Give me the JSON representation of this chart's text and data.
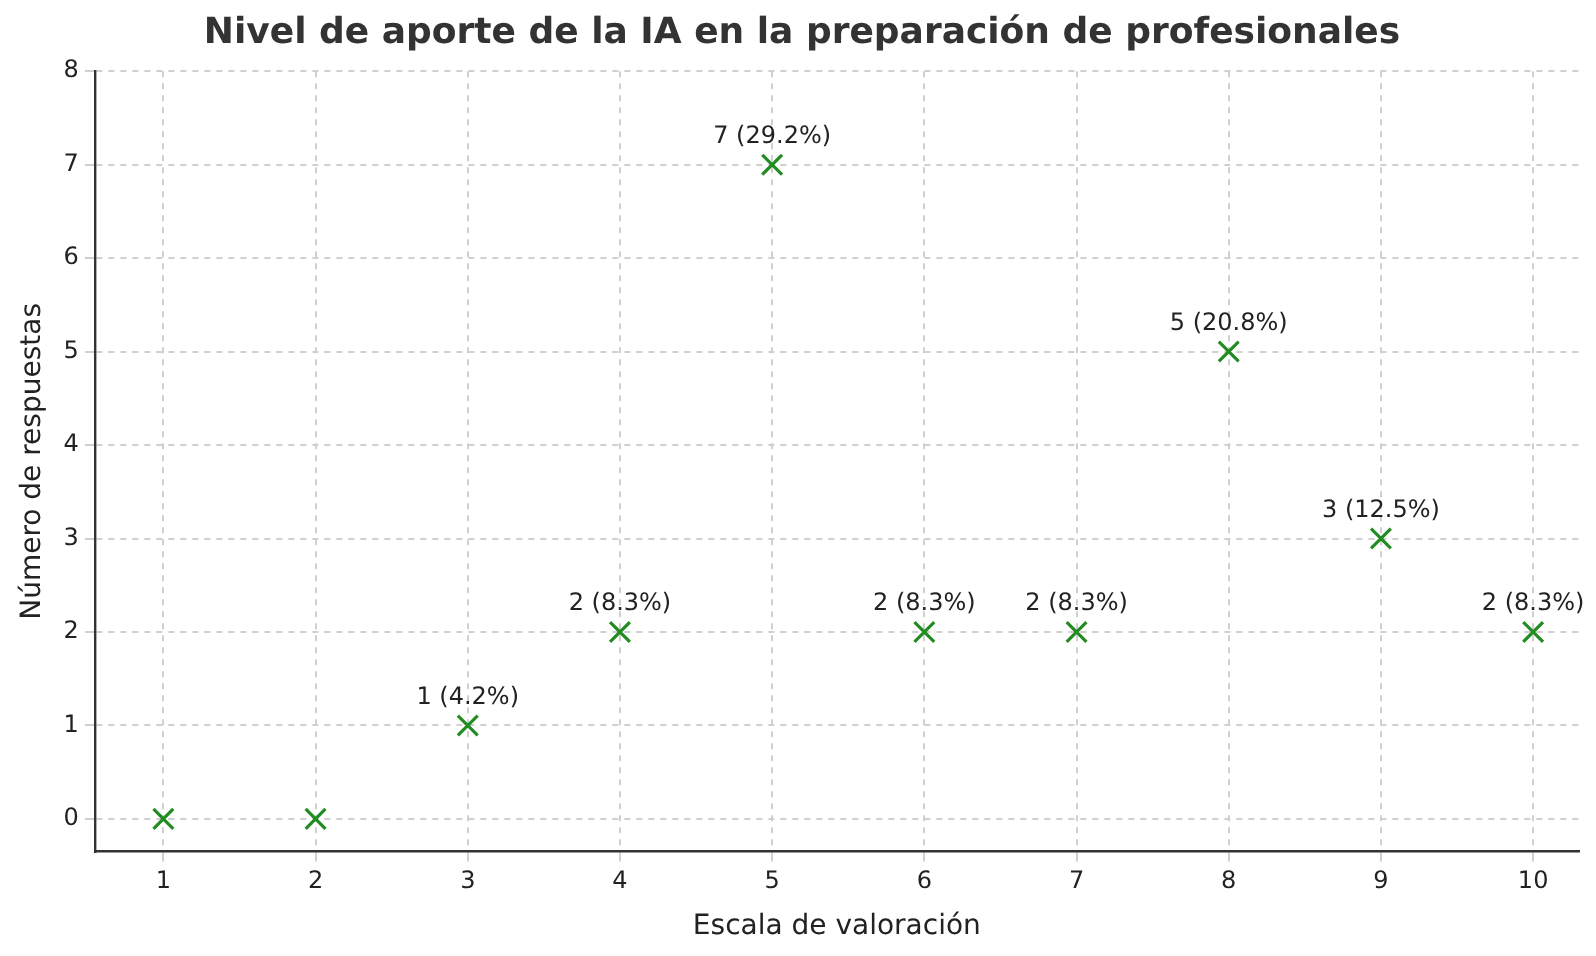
{
  "chart_data": {
    "type": "scatter",
    "title": "Nivel de aporte de la IA en la preparación de profesionales",
    "xlabel": "Escala de valoración",
    "ylabel": "Número de respuestas",
    "x": [
      1,
      2,
      3,
      4,
      5,
      6,
      7,
      8,
      9,
      10
    ],
    "values": [
      0,
      0,
      1,
      2,
      7,
      2,
      2,
      5,
      3,
      2
    ],
    "value_labels": [
      null,
      null,
      "1 (4.2%)",
      "2 (8.3%)",
      "7 (29.2%)",
      "2 (8.3%)",
      "2 (8.3%)",
      "5 (20.8%)",
      "3 (12.5%)",
      "2 (8.3%)"
    ],
    "color": "#228b22",
    "marker": "cross",
    "grid": true,
    "xlim": [
      0.55,
      10.3
    ],
    "xticks": [
      1,
      2,
      3,
      4,
      5,
      6,
      7,
      8,
      9,
      10
    ],
    "ylim": [
      -0.35,
      8
    ],
    "yticks": [
      0,
      1,
      2,
      3,
      4,
      5,
      6,
      7,
      8
    ]
  }
}
